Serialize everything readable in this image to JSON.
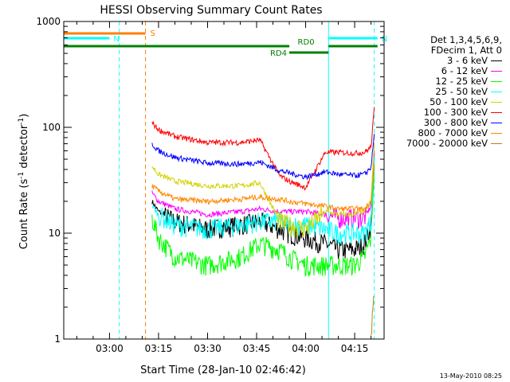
{
  "chart_data": {
    "type": "line",
    "title": "HESSI Observing Summary Count Rates",
    "xlabel": "Start Time (28-Jan-10 02:46:42)",
    "ylabel_main": "Count Rate (s",
    "ylabel_sup1": "-1",
    "ylabel_mid": " detector",
    "ylabel_sup2": "-1",
    "ylabel_end": ")",
    "yscale": "log",
    "ylim": [
      1,
      1000
    ],
    "xlim": [
      "02:46",
      "04:24"
    ],
    "x_ticks": [
      "03:00",
      "03:15",
      "03:30",
      "03:45",
      "04:00",
      "04:15"
    ],
    "y_ticks": [
      "1",
      "10",
      "100",
      "1000"
    ],
    "legend_header": [
      "Det 1,3,4,5,6,9,",
      "FDecim 1, Att 0"
    ],
    "series": [
      {
        "name": "3 - 6 keV",
        "color": "#000000",
        "x": [
          "03:13",
          "03:15",
          "03:20",
          "03:30",
          "03:40",
          "03:46",
          "03:52",
          "03:55",
          "04:00",
          "04:06",
          "04:10",
          "04:15",
          "04:18",
          "04:20",
          "04:21"
        ],
        "values": [
          20,
          16,
          13,
          11,
          12,
          13,
          11,
          10,
          9,
          8,
          7,
          7,
          8,
          12,
          55
        ]
      },
      {
        "name": "6 - 12 keV",
        "color": "#ff00ff",
        "x": [
          "03:13",
          "03:15",
          "03:20",
          "03:30",
          "03:40",
          "03:46",
          "03:52",
          "03:55",
          "04:00",
          "04:06",
          "04:10",
          "04:15",
          "04:18",
          "04:20",
          "04:21"
        ],
        "values": [
          24,
          20,
          17,
          15,
          16,
          17,
          16,
          16,
          16,
          15,
          14,
          14,
          14,
          18,
          60
        ]
      },
      {
        "name": "12 - 25 keV",
        "color": "#00ff00",
        "x": [
          "03:13",
          "03:15",
          "03:20",
          "03:30",
          "03:40",
          "03:46",
          "03:52",
          "03:55",
          "04:00",
          "04:06",
          "04:10",
          "04:15",
          "04:18",
          "04:20",
          "04:21"
        ],
        "values": [
          14,
          9,
          6,
          5,
          6,
          8,
          7,
          6,
          5,
          5,
          5,
          5,
          6,
          9,
          40
        ]
      },
      {
        "name": "25 - 50 keV",
        "color": "#00ffff",
        "x": [
          "03:13",
          "03:15",
          "03:20",
          "03:30",
          "03:40",
          "03:46",
          "03:52",
          "03:55",
          "04:00",
          "04:06",
          "04:10",
          "04:15",
          "04:18",
          "04:20",
          "04:21"
        ],
        "values": [
          18,
          15,
          12,
          11,
          12,
          13,
          13,
          12,
          12,
          11,
          10,
          10,
          10,
          13,
          50
        ]
      },
      {
        "name": "50 - 100 keV",
        "color": "#d2d200",
        "x": [
          "03:13",
          "03:15",
          "03:20",
          "03:30",
          "03:40",
          "03:46",
          "03:52",
          "03:55",
          "04:00",
          "04:06",
          "04:10",
          "04:15",
          "04:18",
          "04:20",
          "04:21"
        ],
        "values": [
          43,
          36,
          31,
          28,
          28,
          30,
          13,
          12,
          11,
          16,
          15,
          15,
          16,
          20,
          70
        ]
      },
      {
        "name": "100 - 300 keV",
        "color": "#ff0000",
        "x": [
          "03:13",
          "03:15",
          "03:20",
          "03:30",
          "03:40",
          "03:46",
          "03:52",
          "03:55",
          "04:00",
          "04:06",
          "04:10",
          "04:15",
          "04:18",
          "04:20",
          "04:21"
        ],
        "values": [
          110,
          95,
          82,
          72,
          72,
          76,
          35,
          31,
          27,
          58,
          58,
          57,
          58,
          65,
          150
        ]
      },
      {
        "name": "300 - 800 keV",
        "color": "#0000ff",
        "x": [
          "03:13",
          "03:15",
          "03:20",
          "03:30",
          "03:40",
          "03:46",
          "03:52",
          "03:55",
          "04:00",
          "04:06",
          "04:10",
          "04:15",
          "04:18",
          "04:20",
          "04:21"
        ],
        "values": [
          70,
          60,
          52,
          46,
          45,
          47,
          39,
          37,
          34,
          38,
          36,
          35,
          36,
          42,
          85
        ]
      },
      {
        "name": "800 - 7000 keV",
        "color": "#ff8800",
        "x": [
          "03:13",
          "03:15",
          "03:20",
          "03:30",
          "03:40",
          "03:46",
          "03:52",
          "03:55",
          "04:00",
          "04:06",
          "04:10",
          "04:15",
          "04:18",
          "04:20",
          "04:21"
        ],
        "values": [
          28,
          25,
          21,
          20,
          21,
          22,
          21,
          20,
          19,
          18,
          17,
          17,
          17,
          20,
          45
        ]
      },
      {
        "name": "7000 - 20000 keV",
        "color": "#b8860b",
        "x": [
          "04:20",
          "04:21"
        ],
        "values": [
          1,
          3
        ]
      }
    ],
    "flags": [
      {
        "label": "S",
        "color": "#ff8000",
        "start": "02:46",
        "end": "03:11"
      },
      {
        "label": "N",
        "color": "#00ffff",
        "start": "02:46",
        "end": "03:00"
      },
      {
        "label": "N",
        "color": "#00ffff",
        "start": "04:07",
        "end": "04:22"
      },
      {
        "label": "RD0",
        "color": "#008000",
        "start": "02:46",
        "end": "03:55"
      },
      {
        "label": "",
        "color": "#008000",
        "start": "04:07",
        "end": "04:22"
      },
      {
        "label": "RD4",
        "color": "#008000",
        "start": "03:55",
        "end": "04:07"
      }
    ],
    "vlines": [
      {
        "x": "02:46",
        "color": "#00ffff",
        "style": "solid"
      },
      {
        "x": "03:03",
        "color": "#00ffff",
        "style": "dashed"
      },
      {
        "x": "03:11",
        "color": "#ff8000",
        "style": "dashed"
      },
      {
        "x": "04:07",
        "color": "#00ffff",
        "style": "solid"
      },
      {
        "x": "04:21",
        "color": "#00ffff",
        "style": "dashed"
      }
    ],
    "grid": false,
    "legend_position": "right"
  },
  "footer": {
    "date": "13-May-2010 08:25"
  }
}
